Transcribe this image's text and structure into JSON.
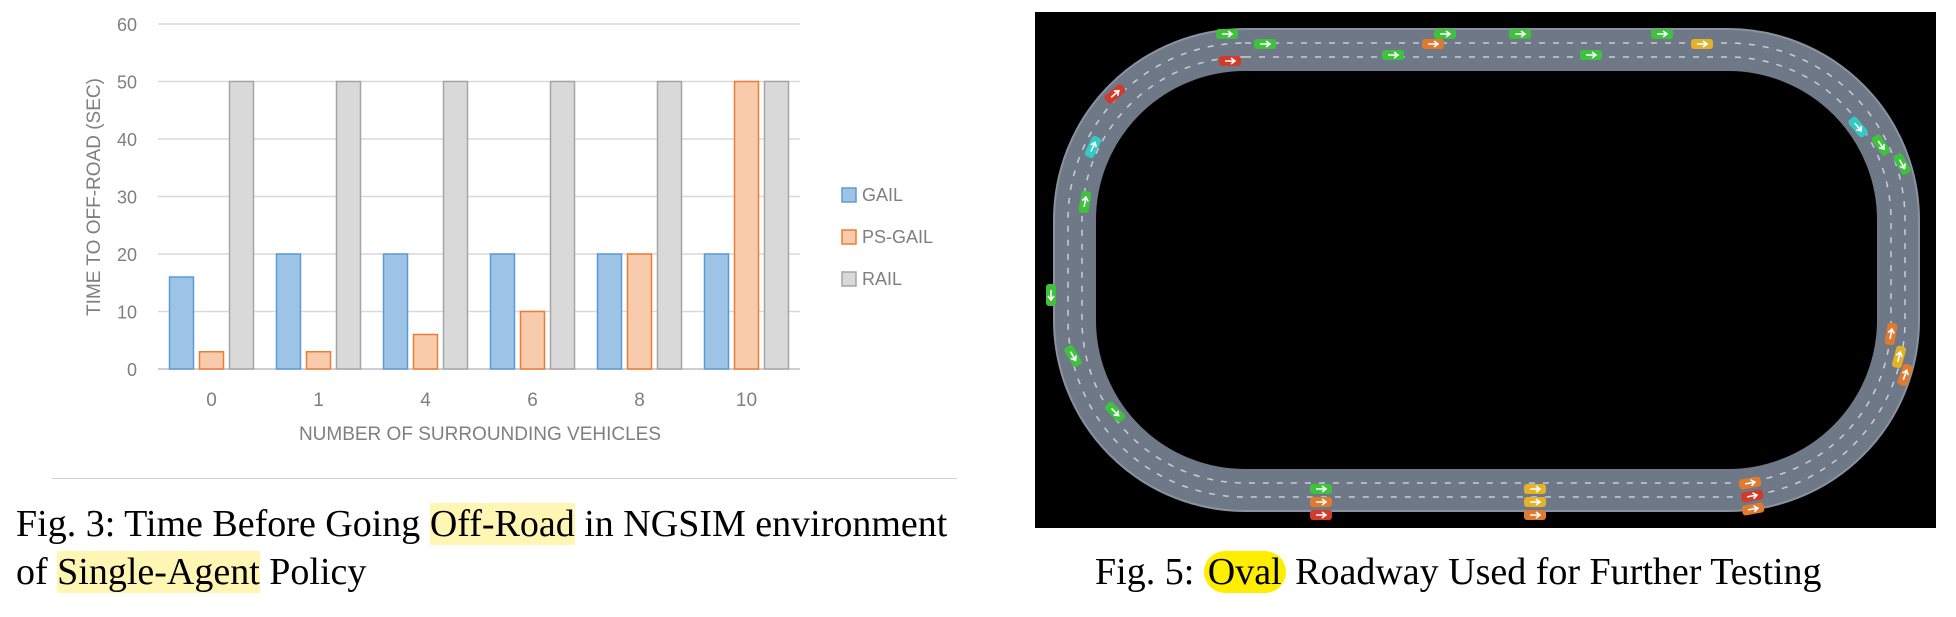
{
  "chart_data": {
    "type": "bar",
    "title": "",
    "xlabel": "NUMBER OF SURROUNDING VEHICLES",
    "ylabel": "TIME TO OFF-ROAD (SEC)",
    "categories": [
      "0",
      "1",
      "4",
      "6",
      "8",
      "10"
    ],
    "ylim": [
      0,
      60
    ],
    "yticks": [
      "0",
      "10",
      "20",
      "30",
      "40",
      "50",
      "60"
    ],
    "grid": true,
    "legend_position": "right",
    "series": [
      {
        "name": "GAIL",
        "values": [
          16,
          20,
          20,
          20,
          20,
          20
        ],
        "color": "#9dc3e6",
        "edge": "#5b9bd5"
      },
      {
        "name": "PS-GAIL",
        "values": [
          3,
          3,
          6,
          10,
          20,
          50
        ],
        "color": "#f8cbad",
        "edge": "#ed7d31"
      },
      {
        "name": "RAIL",
        "values": [
          50,
          50,
          50,
          50,
          50,
          50
        ],
        "color": "#d9d9d9",
        "edge": "#a5a5a5"
      }
    ]
  },
  "captions": {
    "fig3": {
      "line1_a": "Fig. 3: Time Before Going ",
      "line1_hl": "Off-Road",
      "line1_b": " in NGSIM environment",
      "line2_a": "of ",
      "line2_hl": "Single-Agent",
      "line2_b": " Policy"
    },
    "fig5": {
      "a": "Fig. 5: ",
      "hl": "Oval",
      "b": " Roadway Used for Further Testing"
    }
  },
  "oval_figure": {
    "background": "#000000",
    "road_color": "#6e7887",
    "vehicle_colors": {
      "green": "#3ec23e",
      "orange": "#e07a2e",
      "red": "#d43a2a",
      "yellow": "#e3b22a",
      "cyan": "#33c9c4"
    }
  }
}
